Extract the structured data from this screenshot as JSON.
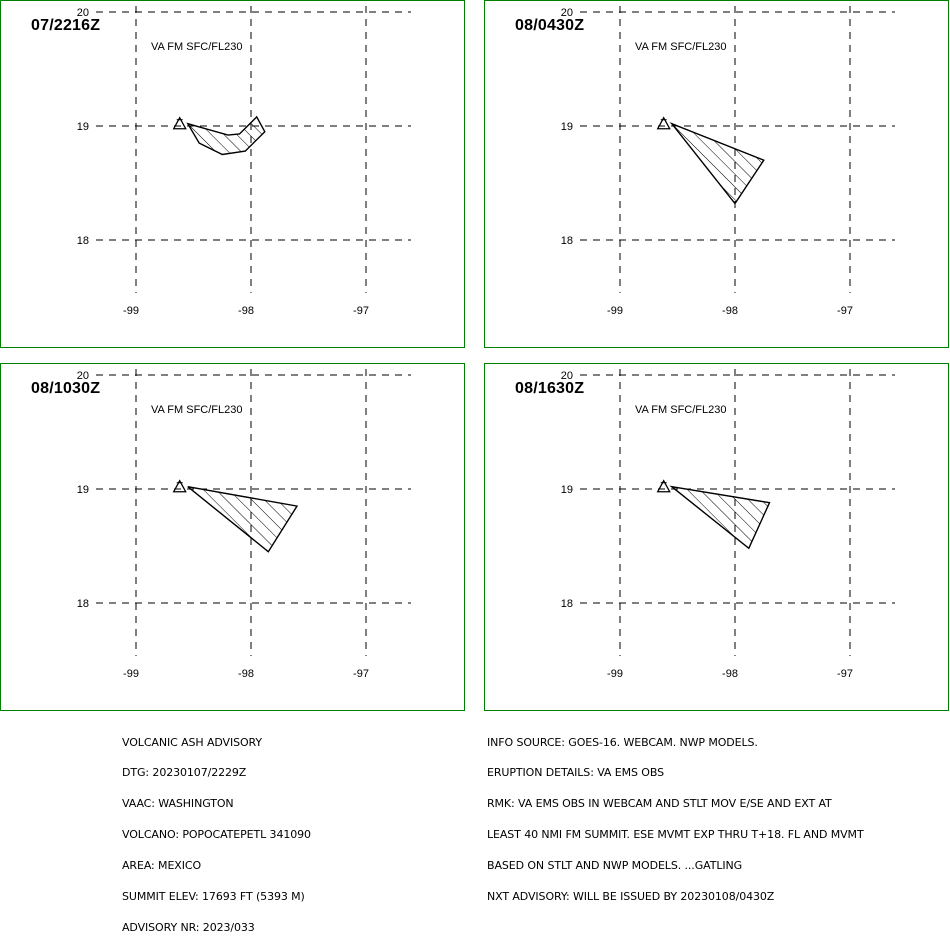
{
  "panels": [
    {
      "time": "07/2216Z",
      "level": "VA FM SFC/FL230",
      "lat_labels": [
        "20",
        "19",
        "18"
      ],
      "lon_labels": [
        "-99",
        "-98",
        "-97"
      ],
      "ash_polygon_lonlat": [
        [
          -98.55,
          19.02
        ],
        [
          -98.45,
          18.85
        ],
        [
          -98.25,
          18.75
        ],
        [
          -98.05,
          18.78
        ],
        [
          -97.88,
          18.95
        ],
        [
          -97.95,
          19.08
        ],
        [
          -98.1,
          18.93
        ],
        [
          -98.2,
          18.92
        ],
        [
          -98.55,
          19.02
        ]
      ]
    },
    {
      "time": "08/0430Z",
      "level": "VA FM SFC/FL230",
      "lat_labels": [
        "20",
        "19",
        "18"
      ],
      "lon_labels": [
        "-99",
        "-98",
        "-97"
      ],
      "ash_polygon_lonlat": [
        [
          -98.55,
          19.02
        ],
        [
          -97.75,
          18.7
        ],
        [
          -98.0,
          18.32
        ],
        [
          -98.55,
          19.02
        ]
      ]
    },
    {
      "time": "08/1030Z",
      "level": "VA FM SFC/FL230",
      "lat_labels": [
        "20",
        "19",
        "18"
      ],
      "lon_labels": [
        "-99",
        "-98",
        "-97"
      ],
      "ash_polygon_lonlat": [
        [
          -98.55,
          19.02
        ],
        [
          -97.6,
          18.85
        ],
        [
          -97.85,
          18.45
        ],
        [
          -98.55,
          19.02
        ]
      ]
    },
    {
      "time": "08/1630Z",
      "level": "VA FM SFC/FL230",
      "lat_labels": [
        "20",
        "19",
        "18"
      ],
      "lon_labels": [
        "-99",
        "-98",
        "-97"
      ],
      "ash_polygon_lonlat": [
        [
          -98.55,
          19.02
        ],
        [
          -97.7,
          18.88
        ],
        [
          -97.88,
          18.48
        ],
        [
          -98.55,
          19.02
        ]
      ]
    }
  ],
  "volcano": {
    "lon": -98.62,
    "lat": 19.02,
    "symbol": "triangle"
  },
  "colors": {
    "frame": "#008000",
    "ink": "#000000",
    "background": "#ffffff"
  },
  "advisory_left": [
    "VOLCANIC ASH ADVISORY",
    "DTG: 20230107/2229Z",
    "VAAC: WASHINGTON",
    "VOLCANO: POPOCATEPETL 341090",
    "AREA: MEXICO",
    "SUMMIT ELEV: 17693 FT (5393 M)",
    "ADVISORY NR: 2023/033"
  ],
  "advisory_right": [
    "INFO SOURCE: GOES-16. WEBCAM. NWP MODELS.",
    "ERUPTION DETAILS: VA EMS OBS",
    "RMK: VA EMS OBS IN WEBCAM AND STLT MOV E/SE AND EXT AT",
    "LEAST 40 NMI FM SUMMIT. ESE MVMT EXP THRU T+18. FL AND MVMT",
    "BASED ON STLT AND NWP MODELS. ...GATLING",
    "NXT ADVISORY: WILL BE ISSUED BY 20230108/0430Z"
  ]
}
